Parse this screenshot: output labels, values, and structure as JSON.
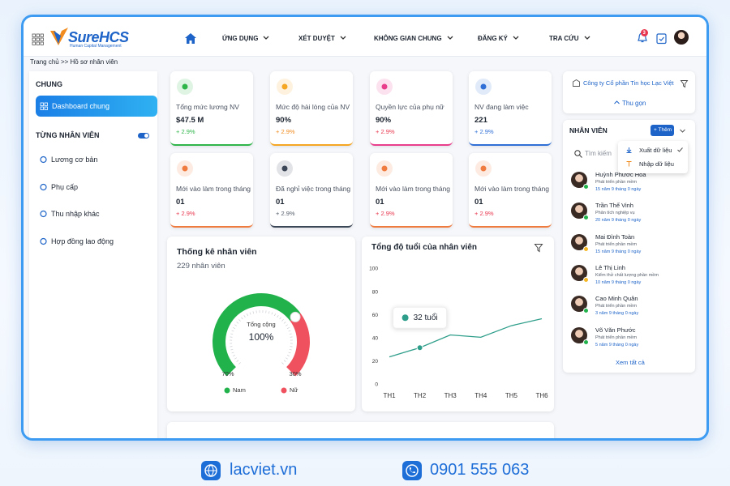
{
  "header": {
    "logo": "SureHCS",
    "logo_sub": "Human Capital Management",
    "nav": [
      "ỨNG DỤNG",
      "XÉT DUYỆT",
      "KHÔNG GIAN CHUNG",
      "ĐĂNG KÝ",
      "TRA CỨU"
    ],
    "notification_count": 3
  },
  "breadcrumb": "Trang chủ >> Hồ sơ nhân viên",
  "sidebar": {
    "section_1": "CHUNG",
    "active_item": "Dashboard chung",
    "section_2": "TỪNG NHÂN VIÊN",
    "items": [
      "Lương cơ bản",
      "Phụ cấp",
      "Thu nhập khác",
      "Hợp đồng lao động"
    ]
  },
  "kpis": [
    {
      "label": "Tổng mức lương NV",
      "value": "$47.5 M",
      "change": "+ 2.9%",
      "color": "#2fb54a",
      "change_color": "#2fb54a"
    },
    {
      "label": "Mức độ hài lòng của NV",
      "value": "90%",
      "change": "+ 2.9%",
      "color": "#f5a623",
      "change_color": "#f08a1c"
    },
    {
      "label": "Quyền lực của phụ nữ",
      "value": "90%",
      "change": "+ 2.9%",
      "color": "#e83e8c",
      "change_color": "#e8364e"
    },
    {
      "label": "NV đang làm việc",
      "value": "221",
      "change": "+ 2.9%",
      "color": "#2f6fd6",
      "change_color": "#2f6fd6"
    },
    {
      "label": "Mới vào làm trong tháng",
      "value": "01",
      "change": "+ 2.9%",
      "color": "#f07b3f",
      "change_color": "#e8364e"
    },
    {
      "label": "Đã nghỉ việc trong tháng",
      "value": "01",
      "change": "+ 2.9%",
      "color": "#3b4656",
      "change_color": "#555e6b"
    },
    {
      "label": "Mới vào làm trong tháng",
      "value": "01",
      "change": "+ 2.9%",
      "color": "#f07b3f",
      "change_color": "#e8364e"
    },
    {
      "label": "Mới vào làm trong tháng",
      "value": "01",
      "change": "+ 2.9%",
      "color": "#f07b3f",
      "change_color": "#e8364e"
    }
  ],
  "gauge_chart": {
    "type": "gauge",
    "title": "Thống kê nhân viên",
    "subtitle": "229 nhân viên",
    "center_label": "Tổng cộng",
    "center_value": "100%",
    "series": [
      {
        "name": "Nam",
        "color": "#22b24c",
        "value": 70,
        "value_label": "70%"
      },
      {
        "name": "Nữ",
        "color": "#f0515e",
        "value": 30,
        "value_label": "30%"
      }
    ]
  },
  "line_chart": {
    "type": "line",
    "title": "Tổng độ tuổi của nhân viên",
    "categories": [
      "TH1",
      "TH2",
      "TH3",
      "TH4",
      "TH5",
      "TH6"
    ],
    "values": [
      24,
      32,
      43,
      41,
      51,
      57
    ],
    "value_labels": [
      null,
      "32 tuổi",
      null,
      null,
      null,
      null
    ],
    "color": "#2e9e8a",
    "ylim": [
      0,
      100
    ],
    "yticks": [
      0,
      20,
      40,
      60,
      80,
      100
    ]
  },
  "company_panel": {
    "company": "Công ty Cổ phần Tin học Lạc Việt",
    "collapse": "Thu gọn"
  },
  "employee_panel": {
    "title": "NHÂN VIÊN",
    "add_button": "+ Thêm",
    "search_placeholder": "Tìm kiếm",
    "menu": [
      "Xuất dữ liệu",
      "Nhập dữ liệu"
    ],
    "employees": [
      {
        "name": "Huỳnh Phước Hòa",
        "role": "Phát triển phần mềm",
        "tenure": "15 năm 9 tháng 0 ngày",
        "status_color": "#22b24c"
      },
      {
        "name": "Trần Thế Vinh",
        "role": "Phân tích nghiệp vụ",
        "tenure": "20 năm 9 tháng 0 ngày",
        "status_color": "#22b24c"
      },
      {
        "name": "Mai Đình Toàn",
        "role": "Phát triển phần mềm",
        "tenure": "15 năm 9 tháng 0 ngày",
        "status_color": "#f5b623"
      },
      {
        "name": "Lê Thị Linh",
        "role": "Kiểm thử chất lượng phần mềm",
        "tenure": "10 năm 9 tháng 0 ngày",
        "status_color": "#f5b623"
      },
      {
        "name": "Cao Minh Quân",
        "role": "Phát triển phần mềm",
        "tenure": "3 năm 9 tháng 0 ngày",
        "status_color": "#22b24c"
      },
      {
        "name": "Võ Văn Phước",
        "role": "Phát triển phần mềm",
        "tenure": "5 năm 9 tháng 0 ngày",
        "status_color": "#22b24c"
      }
    ],
    "view_all": "Xem tất cả"
  },
  "footer": {
    "website": "lacviet.vn",
    "phone": "0901 555 063"
  }
}
